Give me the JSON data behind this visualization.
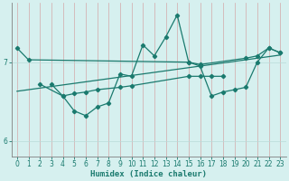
{
  "xlabel": "Humidex (Indice chaleur)",
  "bg_color": "#d6f0ef",
  "grid_color": "#b8dbd9",
  "line_color": "#1a7a6e",
  "ylim": [
    5.8,
    7.75
  ],
  "yticks": [
    6,
    7
  ],
  "xticks": [
    0,
    1,
    2,
    3,
    4,
    5,
    6,
    7,
    8,
    9,
    10,
    11,
    12,
    13,
    14,
    15,
    16,
    17,
    18,
    19,
    20,
    21,
    22,
    23
  ],
  "s1_x": [
    0,
    1,
    15,
    16,
    20,
    21,
    22,
    23
  ],
  "s1_y": [
    7.18,
    7.03,
    7.0,
    6.97,
    7.05,
    7.08,
    7.18,
    7.12
  ],
  "s2_x": [
    2,
    4,
    5,
    6,
    7,
    9,
    10,
    15,
    16,
    17,
    18
  ],
  "s2_y": [
    6.72,
    6.57,
    6.6,
    6.62,
    6.65,
    6.68,
    6.7,
    6.82,
    6.82,
    6.82,
    6.82
  ],
  "s3_x": [
    0,
    1,
    2,
    3,
    4,
    5,
    6,
    7,
    8,
    9,
    10,
    11,
    12,
    13,
    14,
    15,
    16,
    17,
    18,
    19,
    20,
    21,
    22,
    23
  ],
  "s3_y": [
    6.63,
    6.65,
    6.67,
    6.69,
    6.71,
    6.73,
    6.75,
    6.77,
    6.79,
    6.81,
    6.83,
    6.85,
    6.87,
    6.89,
    6.91,
    6.93,
    6.95,
    6.97,
    6.99,
    7.01,
    7.03,
    7.05,
    7.07,
    7.09
  ],
  "s4_x": [
    3,
    4,
    5,
    6,
    7,
    8,
    9,
    10,
    11,
    12,
    13,
    14,
    15,
    16,
    17,
    18,
    19,
    20,
    21,
    22,
    23
  ],
  "s4_y": [
    6.72,
    6.57,
    6.38,
    6.32,
    6.43,
    6.48,
    6.85,
    6.82,
    7.22,
    7.08,
    7.32,
    7.6,
    7.0,
    6.95,
    6.57,
    6.62,
    6.65,
    6.68,
    7.0,
    7.18,
    7.12
  ]
}
